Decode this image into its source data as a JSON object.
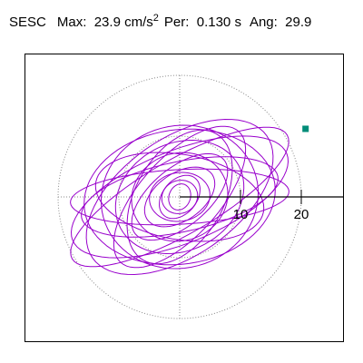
{
  "header": {
    "station": "SESC",
    "max_label": "Max:",
    "max_value": "23.9 cm/s",
    "max_exp": "2",
    "per_label": "Per:",
    "per_value": "0.130 s",
    "ang_label": "Ang:",
    "ang_value": "29.9"
  },
  "chart_data": {
    "type": "particle-motion",
    "title": "",
    "xlabel": "",
    "ylabel": "",
    "xlim": [
      -20,
      25
    ],
    "ylim": [
      -25,
      25
    ],
    "range_rings": [
      10,
      20
    ],
    "tick_labels": [
      "10",
      "20"
    ],
    "marker": {
      "x": 20.7,
      "y": 11.2,
      "color": "#008c78"
    },
    "trace_color": "#9900cc",
    "ring_color": "#888888",
    "max_amplitude": 23.9,
    "angle_deg": 29.9,
    "trace_loops": [
      {
        "r": 20.4,
        "k": 0.3,
        "rot": 29.9
      },
      {
        "r": 19.0,
        "k": 0.4,
        "rot": 22
      },
      {
        "r": 17.5,
        "k": 0.55,
        "rot": 35
      },
      {
        "r": 15.8,
        "k": 0.7,
        "rot": 8
      },
      {
        "r": 14.5,
        "k": 0.45,
        "rot": 48
      },
      {
        "r": 13.0,
        "k": 0.9,
        "rot": 15
      },
      {
        "r": 16.5,
        "k": 0.35,
        "rot": 12
      },
      {
        "r": 12.0,
        "k": 0.6,
        "rot": 60
      },
      {
        "r": 11.0,
        "k": 0.8,
        "rot": 28
      },
      {
        "r": 9.5,
        "k": 0.5,
        "rot": 40
      },
      {
        "r": 18.0,
        "k": 0.25,
        "rot": 3
      },
      {
        "r": 8.0,
        "k": 0.9,
        "rot": 20
      },
      {
        "r": 6.5,
        "k": 0.6,
        "rot": 35
      },
      {
        "r": 14.0,
        "k": 0.5,
        "rot": 170
      },
      {
        "r": 5.0,
        "k": 0.8,
        "rot": 10
      },
      {
        "r": 4.0,
        "k": 0.7,
        "rot": 50
      },
      {
        "r": 3.0,
        "k": 0.9,
        "rot": 25
      },
      {
        "r": 2.2,
        "k": 0.8,
        "rot": 70
      }
    ]
  }
}
